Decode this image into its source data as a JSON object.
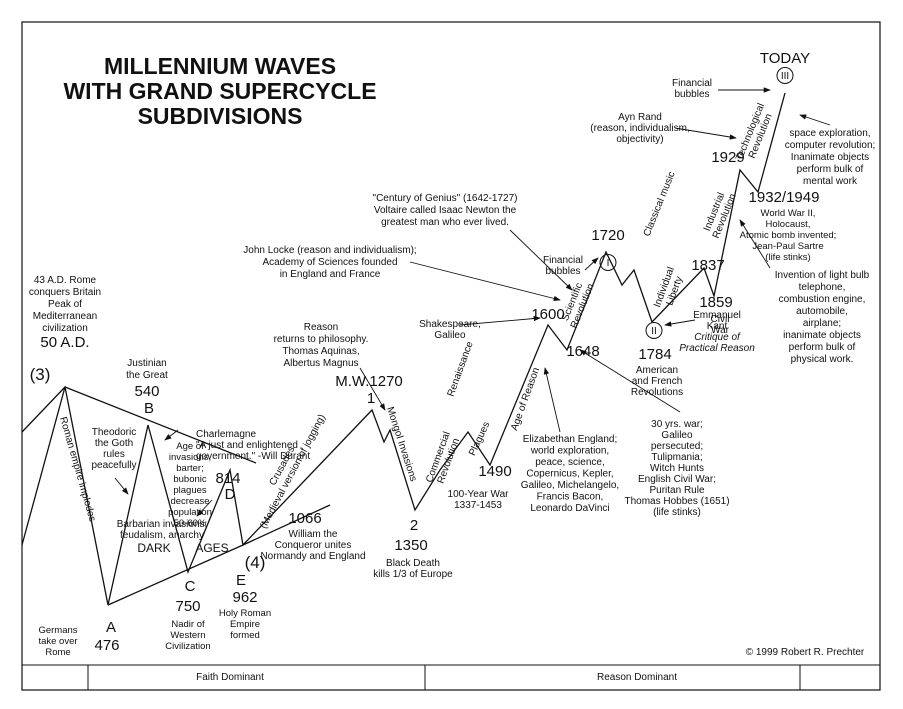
{
  "title": [
    "MILLENNIUM WAVES",
    "WITH GRAND SUPERCYCLE",
    "SUBDIVISIONS"
  ],
  "labels": [
    [
      "43 A.D. Rome",
      "conquers Britain",
      "Peak of",
      "Mediterranean",
      "civilization"
    ],
    [
      "50 A.D."
    ],
    [
      "(3)"
    ],
    [
      "Justinian",
      "the Great"
    ],
    [
      "540"
    ],
    [
      "B"
    ],
    [
      "Charlemagne",
      "\"A just and enlightened",
      "government.\" -Will Durant"
    ],
    [
      "814"
    ],
    [
      "D"
    ],
    [
      "Age of",
      "invasions,",
      "barter;",
      "bubonic",
      "plagues",
      "decrease",
      "population",
      "50-60%"
    ],
    [
      "Theodoric",
      "the Goth",
      "rules",
      "peacefully"
    ],
    [
      "Roman empire implodes"
    ],
    [
      "Barbarian invasions;",
      "feudalism, anarchy"
    ],
    [
      "DARK"
    ],
    [
      "AGES"
    ],
    [
      "C"
    ],
    [
      "750"
    ],
    [
      "Nadir of",
      "Western",
      "Civilization"
    ],
    [
      "(4)"
    ],
    [
      "E"
    ],
    [
      "962"
    ],
    [
      "Holy Roman",
      "Empire",
      "formed"
    ],
    [
      "Germans",
      "take over",
      "Rome"
    ],
    [
      "A"
    ],
    [
      "476"
    ],
    [
      "1066"
    ],
    [
      "William the",
      "Conqueror unites",
      "Normandy and England"
    ],
    [
      "Crusades",
      "(Medieval version of jogging)"
    ],
    [
      "Reason",
      "returns to philosophy.",
      "Thomas Aquinas,",
      "Albertus Magnus"
    ],
    [
      "M.W.1270"
    ],
    [
      "1"
    ],
    [
      "Mongol Invasions"
    ],
    [
      "2"
    ],
    [
      "1350"
    ],
    [
      "Black Death",
      "kills 1/3 of Europe"
    ],
    [
      "Commercial",
      "Revolution"
    ],
    [
      "Plagues"
    ],
    [
      "Renaissance"
    ],
    [
      "1490"
    ],
    [
      "100-Year War",
      "1337-1453"
    ],
    [
      "Age of Reason"
    ],
    [
      "Elizabethan England;",
      "world exploration,",
      "peace, science,",
      "Copernicus, Kepler,",
      "Galileo, Michelangelo,",
      "Francis Bacon,",
      "Leonardo DaVinci"
    ],
    [
      "Shakespeare,",
      "Galileo"
    ],
    [
      "1600"
    ],
    [
      "1648"
    ],
    [
      "Scientific",
      "Revolution"
    ],
    [
      "John Locke (reason and individualism);",
      "Academy of Sciences founded",
      "in England and France"
    ],
    [
      "\"Century of Genius\" (1642-1727)",
      "Voltaire called Isaac Newton the",
      "greatest man who ever lived."
    ],
    [
      "Financial",
      "bubbles"
    ],
    [
      "1720"
    ],
    [
      "I"
    ],
    [
      "Classical music"
    ],
    [
      "30 yrs. war;",
      "Galileo",
      "persecuted;",
      "Tulipmania;",
      "Witch Hunts",
      "English Civil War;",
      "Puritan Rule",
      "Thomas Hobbes (1651)",
      "(life stinks)"
    ],
    [
      "II"
    ],
    [
      "1784"
    ],
    [
      "American",
      "and French",
      "Revolutions"
    ],
    [
      "Emmanuel",
      "Kant"
    ],
    [
      "Critique of",
      "Practical Reason"
    ],
    [
      "1837"
    ],
    [
      "Individual",
      "Liberty"
    ],
    [
      "1859"
    ],
    [
      "Civil",
      "War"
    ],
    [
      "Industrial",
      "Revolution"
    ],
    [
      "1929"
    ],
    [
      "Ayn Rand",
      "(reason, individualism,",
      "objectivity)"
    ],
    [
      "Financial",
      "bubbles"
    ],
    [
      "TODAY"
    ],
    [
      "III"
    ],
    [
      "Technological",
      "Revolution"
    ],
    [
      "space exploration,",
      "computer revolution;",
      "Inanimate objects",
      "perform bulk of",
      "mental work"
    ],
    [
      "1932/1949"
    ],
    [
      "World War II,",
      "Holocaust,",
      "Atomic bomb invented;",
      "Jean-Paul Sartre",
      "(life stinks)"
    ],
    [
      "Invention of light bulb",
      "telephone,",
      "combustion engine,",
      "automobile,",
      "airplane;",
      "inanimate objects",
      "perform bulk of",
      "physical work."
    ],
    [
      "© 1999 Robert R. Prechter"
    ],
    [
      "Faith Dominant"
    ],
    [
      "Reason Dominant"
    ]
  ]
}
